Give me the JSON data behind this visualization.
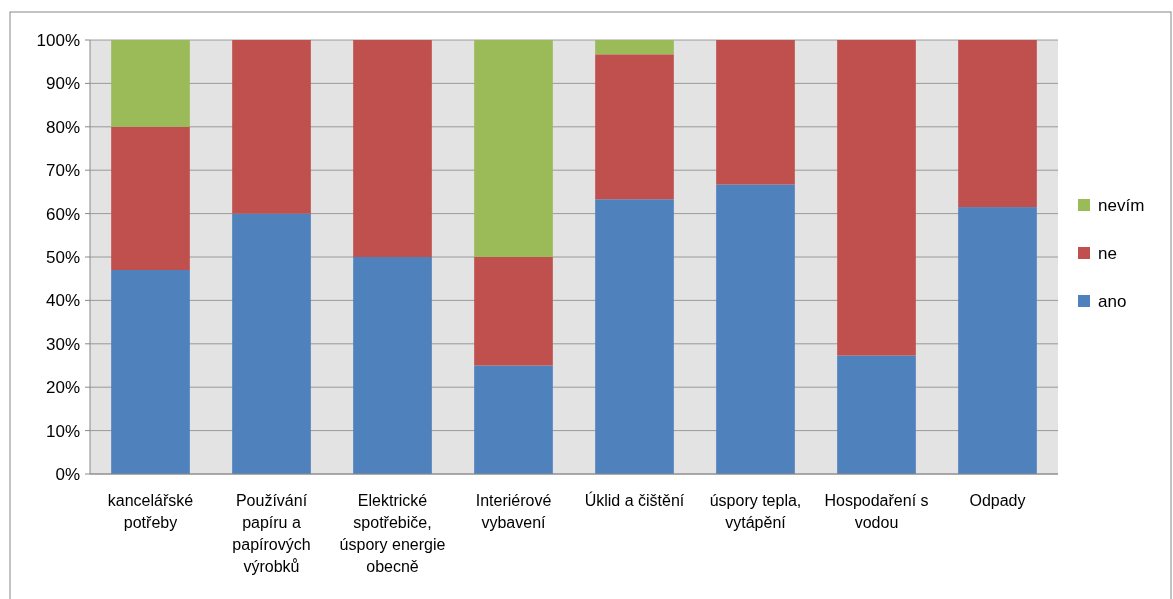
{
  "chart_data": {
    "type": "bar",
    "stacked": true,
    "categories": [
      "kancelářské potřeby",
      "Používání papíru a papírových výrobků",
      "Elektrické spotřebiče, úspory energie obecně",
      "Interiérové vybavení",
      "Úklid a čištění",
      "úspory tepla, vytápění",
      "Hospodaření s vodou",
      "Odpady"
    ],
    "series": [
      {
        "name": "ano",
        "color": "#4f81bd",
        "values": [
          47,
          60,
          50,
          25,
          63.3,
          66.7,
          27.3,
          61.5
        ]
      },
      {
        "name": "ne",
        "color": "#c0504d",
        "values": [
          33,
          40,
          50,
          25,
          33.4,
          33.3,
          72.7,
          38.5
        ]
      },
      {
        "name": "nevím",
        "color": "#9bbb59",
        "values": [
          20,
          0,
          0,
          50,
          3.3,
          0,
          0,
          0
        ]
      }
    ],
    "ylim": [
      0,
      100
    ],
    "yticks": [
      {
        "value": 0,
        "label": "0%"
      },
      {
        "value": 10,
        "label": "10%"
      },
      {
        "value": 20,
        "label": "20%"
      },
      {
        "value": 30,
        "label": "30%"
      },
      {
        "value": 40,
        "label": "40%"
      },
      {
        "value": 50,
        "label": "50%"
      },
      {
        "value": 60,
        "label": "60%"
      },
      {
        "value": 70,
        "label": "70%"
      },
      {
        "value": 80,
        "label": "80%"
      },
      {
        "value": 90,
        "label": "90%"
      },
      {
        "value": 100,
        "label": "100%"
      }
    ],
    "grid": "y",
    "legend": "right"
  }
}
